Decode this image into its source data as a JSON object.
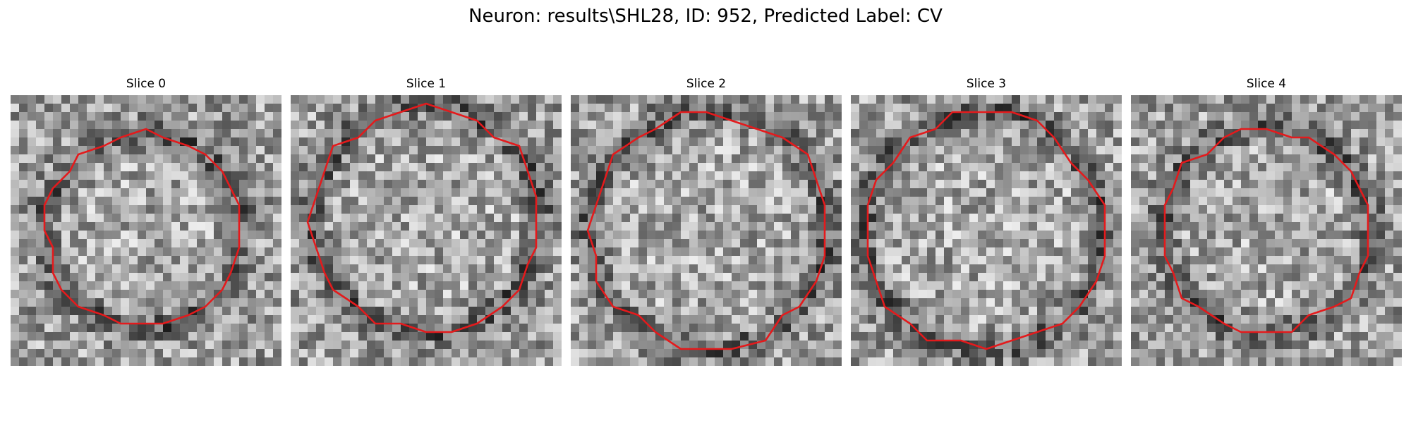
{
  "figure": {
    "suptitle": "Neuron: results\\SHL28, ID: 952, Predicted Label: CV"
  },
  "panels": [
    {
      "title": "Slice 0",
      "seed": 11,
      "center": [
        0.49,
        0.5
      ],
      "radius": 0.36,
      "contour_color": "#e41a1c"
    },
    {
      "title": "Slice 1",
      "seed": 23,
      "center": [
        0.5,
        0.46
      ],
      "radius": 0.42,
      "contour_color": "#e41a1c"
    },
    {
      "title": "Slice 2",
      "seed": 37,
      "center": [
        0.51,
        0.5
      ],
      "radius": 0.44,
      "contour_color": "#e41a1c"
    },
    {
      "title": "Slice 3",
      "seed": 41,
      "center": [
        0.49,
        0.5
      ],
      "radius": 0.44,
      "contour_color": "#e41a1c"
    },
    {
      "title": "Slice 4",
      "seed": 53,
      "center": [
        0.5,
        0.5
      ],
      "radius": 0.38,
      "contour_color": "#e41a1c"
    }
  ],
  "colormap": "gray"
}
